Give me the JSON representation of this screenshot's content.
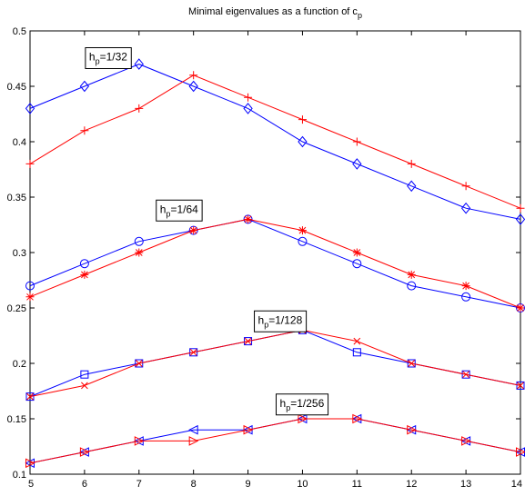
{
  "chart_data": {
    "type": "line",
    "title": "Minimal eigenvalues as a function of c",
    "title_subscript": "p",
    "xlabel": "",
    "ylabel": "",
    "xlim": [
      5,
      14
    ],
    "ylim": [
      0.1,
      0.5
    ],
    "x_ticks": [
      5,
      6,
      7,
      8,
      9,
      10,
      11,
      12,
      13,
      14
    ],
    "y_ticks": [
      0.1,
      0.15,
      0.2,
      0.25,
      0.3,
      0.35,
      0.4,
      0.45,
      0.5
    ],
    "grid": false,
    "x": [
      5,
      6,
      7,
      8,
      9,
      10,
      11,
      12,
      13,
      14
    ],
    "series": [
      {
        "color": "#0000ff",
        "marker": "diamond",
        "values": [
          0.43,
          0.45,
          0.47,
          0.45,
          0.43,
          0.4,
          0.38,
          0.36,
          0.34,
          0.33
        ]
      },
      {
        "color": "#ff0000",
        "marker": "plus",
        "values": [
          0.38,
          0.41,
          0.43,
          0.46,
          0.44,
          0.42,
          0.4,
          0.38,
          0.36,
          0.34
        ]
      },
      {
        "color": "#0000ff",
        "marker": "circle",
        "values": [
          0.27,
          0.29,
          0.31,
          0.32,
          0.33,
          0.31,
          0.29,
          0.27,
          0.26,
          0.25
        ]
      },
      {
        "color": "#ff0000",
        "marker": "star",
        "values": [
          0.26,
          0.28,
          0.3,
          0.32,
          0.33,
          0.32,
          0.3,
          0.28,
          0.27,
          0.25
        ]
      },
      {
        "color": "#0000ff",
        "marker": "square",
        "values": [
          0.17,
          0.19,
          0.2,
          0.21,
          0.22,
          0.23,
          0.21,
          0.2,
          0.19,
          0.18
        ]
      },
      {
        "color": "#ff0000",
        "marker": "x",
        "values": [
          0.17,
          0.18,
          0.2,
          0.21,
          0.22,
          0.23,
          0.22,
          0.2,
          0.19,
          0.18
        ]
      },
      {
        "color": "#0000ff",
        "marker": "triangle-left",
        "values": [
          0.11,
          0.12,
          0.13,
          0.14,
          0.14,
          0.15,
          0.15,
          0.14,
          0.13,
          0.12
        ]
      },
      {
        "color": "#ff0000",
        "marker": "triangle-right",
        "values": [
          0.11,
          0.12,
          0.13,
          0.13,
          0.14,
          0.15,
          0.15,
          0.14,
          0.13,
          0.12
        ]
      }
    ],
    "annotations": [
      {
        "prefix": "h",
        "subscript": "p",
        "suffix": "=1/32",
        "anchor": [
          6.0,
          0.475
        ]
      },
      {
        "prefix": "h",
        "subscript": "p",
        "suffix": "=1/64",
        "anchor": [
          7.3,
          0.3375
        ]
      },
      {
        "prefix": "h",
        "subscript": "p",
        "suffix": "=1/128",
        "anchor": [
          9.1,
          0.2375
        ]
      },
      {
        "prefix": "h",
        "subscript": "p",
        "suffix": "=1/256",
        "anchor": [
          9.5,
          0.1625
        ]
      }
    ]
  }
}
